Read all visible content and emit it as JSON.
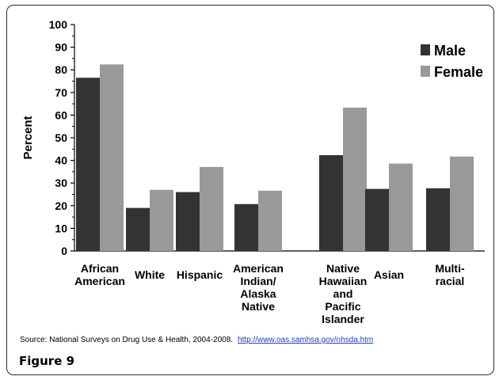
{
  "chart_data": {
    "type": "bar",
    "ylabel": "Percent",
    "ylim": [
      0,
      100
    ],
    "yticks": [
      0,
      10,
      20,
      30,
      40,
      50,
      60,
      70,
      80,
      90,
      100
    ],
    "categories": [
      [
        "African",
        "American"
      ],
      [
        "White"
      ],
      [
        "Hispanic"
      ],
      [
        "American",
        "Indian/",
        "Alaska",
        "Native"
      ],
      [
        "Native",
        "Hawaiian",
        "and",
        "Pacific",
        "Islander"
      ],
      [
        "Asian"
      ],
      [
        "Multi-",
        "racial"
      ]
    ],
    "series": [
      {
        "name": "Male",
        "color": "#333333",
        "values": [
          76.5,
          19.0,
          26.0,
          20.7,
          42.3,
          27.4,
          27.7
        ]
      },
      {
        "name": "Female",
        "color": "#999999",
        "values": [
          82.4,
          27.0,
          37.1,
          26.6,
          63.3,
          38.6,
          41.7
        ]
      }
    ],
    "legend_position": "top-right",
    "grid": false
  },
  "footer": {
    "source_text": "Source: National Surveys on Drug Use & Health, 2004-2008.",
    "source_link": "http://www.oas.samhsa.gov/nhsda.htm",
    "figure_label": "Figure 9"
  }
}
